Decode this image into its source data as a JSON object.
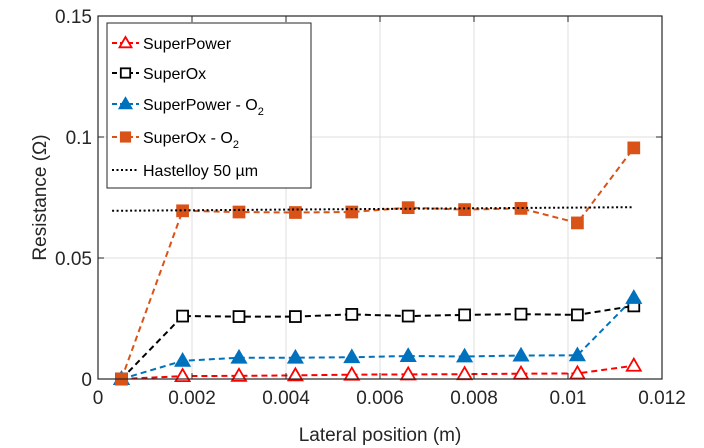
{
  "chart_data": {
    "type": "line",
    "xlabel": "Lateral position (m)",
    "ylabel": "Resistance (Ω)",
    "xlim": [
      0,
      0.012
    ],
    "ylim": [
      0,
      0.15
    ],
    "xticks": [
      0,
      0.002,
      0.004,
      0.006,
      0.008,
      0.01,
      0.012
    ],
    "xtick_labels": [
      "0",
      "0.002",
      "0.004",
      "0.006",
      "0.008",
      "0.01",
      "0.012"
    ],
    "yticks": [
      0,
      0.05,
      0.1,
      0.15
    ],
    "ytick_labels": [
      "0",
      "0.05",
      "0.1",
      "0.15"
    ],
    "grid": true,
    "legend_position": "top-left",
    "series": [
      {
        "name": "SuperPower",
        "color": "#ff0000",
        "marker": "triangle-open",
        "line": "dashed",
        "x": [
          0.0005,
          0.0018,
          0.003,
          0.0042,
          0.0054,
          0.0066,
          0.0078,
          0.009,
          0.0102,
          0.0114
        ],
        "y": [
          0.0,
          0.0012,
          0.0013,
          0.0015,
          0.0018,
          0.0019,
          0.002,
          0.0022,
          0.0023,
          0.0055
        ]
      },
      {
        "name": "SuperOx",
        "color": "#000000",
        "marker": "square-open",
        "line": "dashed",
        "x": [
          0.0005,
          0.0018,
          0.003,
          0.0042,
          0.0054,
          0.0066,
          0.0078,
          0.009,
          0.0102,
          0.0114
        ],
        "y": [
          0.0,
          0.026,
          0.0258,
          0.0258,
          0.0267,
          0.026,
          0.0265,
          0.0268,
          0.0265,
          0.0302
        ]
      },
      {
        "name": "SuperPower - O",
        "name_sub": "2",
        "color": "#0072bd",
        "marker": "triangle-filled",
        "line": "dashed",
        "x": [
          0.0005,
          0.0018,
          0.003,
          0.0042,
          0.0054,
          0.0066,
          0.0078,
          0.009,
          0.0102,
          0.0114
        ],
        "y": [
          0.0,
          0.0075,
          0.0088,
          0.0088,
          0.009,
          0.0095,
          0.0093,
          0.0097,
          0.0098,
          0.0335
        ]
      },
      {
        "name": "SuperOx - O",
        "name_sub": "2",
        "color": "#d95319",
        "marker": "square-filled",
        "line": "dashed",
        "x": [
          0.0005,
          0.0018,
          0.003,
          0.0042,
          0.0054,
          0.0066,
          0.0078,
          0.009,
          0.0102,
          0.0114
        ],
        "y": [
          0.0,
          0.0695,
          0.069,
          0.0688,
          0.069,
          0.0708,
          0.07,
          0.0705,
          0.0645,
          0.0955
        ]
      },
      {
        "name": "Hastelloy 50 µm",
        "color": "#000000",
        "marker": "none",
        "line": "dotted",
        "x": [
          0.0003,
          0.0114
        ],
        "y": [
          0.0695,
          0.071
        ]
      }
    ]
  }
}
